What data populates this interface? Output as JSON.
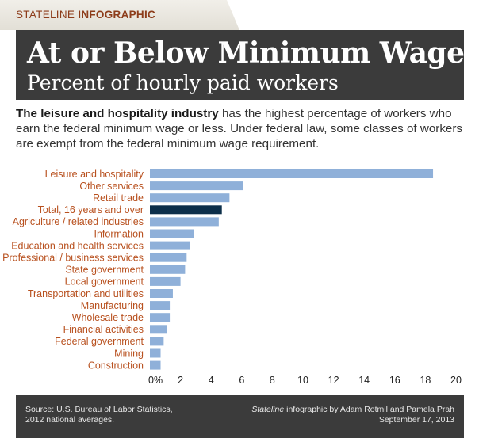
{
  "header": {
    "tag_prefix": "STATELINE ",
    "tag_bold": "INFOGRAPHIC",
    "title": "At or Below Minimum Wage",
    "subtitle": "Percent of hourly paid workers"
  },
  "intro": {
    "bold": "The leisure and hospitality industry",
    "text": " has the highest percentage of workers who earn the federal minimum wage or less. Under federal law, some classes of workers are exempt from the federal minimum wage requirement."
  },
  "chart_data": {
    "type": "bar",
    "orientation": "horizontal",
    "categories": [
      "Leisure and hospitality",
      "Other services",
      "Retail trade",
      "Total, 16 years and over",
      "Agriculture / related industries",
      "Information",
      "Education and health services",
      "Professional / business services",
      "State government",
      "Local government",
      "Transportation and utilities",
      "Manufacturing",
      "Wholesale trade",
      "Financial activities",
      "Federal government",
      "Mining",
      "Construction"
    ],
    "values": [
      18.5,
      6.1,
      5.2,
      4.7,
      4.5,
      2.9,
      2.6,
      2.4,
      2.3,
      2.0,
      1.5,
      1.3,
      1.3,
      1.1,
      0.9,
      0.7,
      0.7
    ],
    "highlight_category": "Total, 16 years and over",
    "xlim": [
      0,
      20
    ],
    "ticks": [
      "0%",
      "2",
      "4",
      "6",
      "8",
      "10",
      "12",
      "14",
      "16",
      "18",
      "20"
    ],
    "grid": false,
    "colors": {
      "bar": "#8fb0d9",
      "highlight": "#0d2f4a",
      "label": "#b8501e"
    }
  },
  "footer": {
    "source_line1": "Source: U.S. Bureau of Labor Statistics,",
    "source_line2": "2012 national averages.",
    "credit_italic": "Stateline",
    "credit_rest": " infographic by Adam Rotmil and Pamela Prah",
    "date": "September 17, 2013"
  }
}
